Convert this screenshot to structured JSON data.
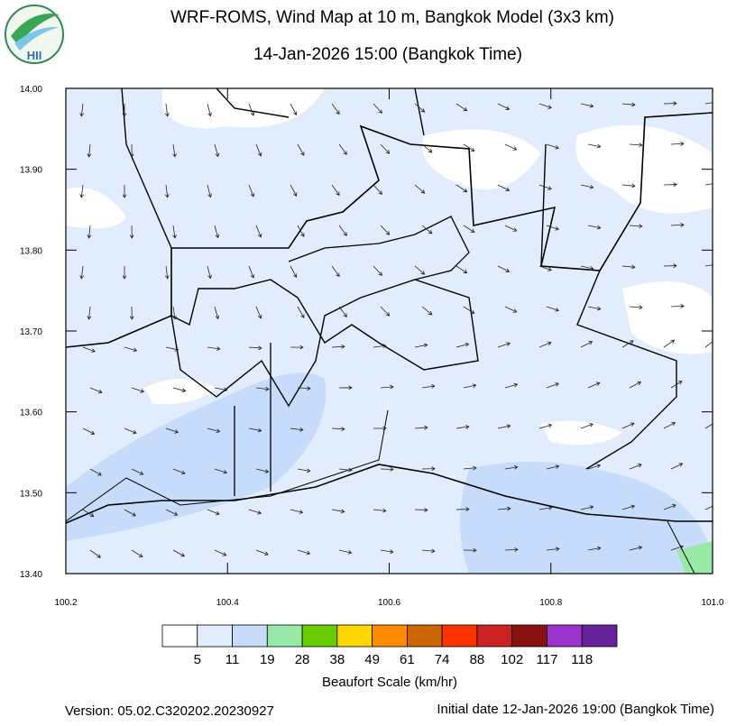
{
  "title": "WRF-ROMS, Wind Map at 10 m, Bangkok Model (3x3 km)",
  "subtitle": "14-Jan-2026 15:00 (Bangkok Time)",
  "logo_text": "HII",
  "map": {
    "xlim": [
      100.2,
      101.0
    ],
    "ylim": [
      13.4,
      14.0
    ],
    "xticks": [
      100.2,
      100.4,
      100.6,
      100.8,
      {
        "value": 101.0,
        "label": "101.0"
      }
    ],
    "yticks": [
      {
        "value": 14.0,
        "label": "14.00"
      },
      {
        "value": 13.9,
        "label": "13.90"
      },
      {
        "value": 13.8,
        "label": "13.80"
      },
      {
        "value": 13.7,
        "label": "13.70"
      },
      {
        "value": 13.6,
        "label": "13.60"
      },
      {
        "value": 13.5,
        "label": "13.50"
      },
      {
        "value": 13.4,
        "label": "13.40"
      }
    ]
  },
  "colorbar": {
    "label": "Beaufort Scale (km/hr)",
    "ticks": [
      5,
      11,
      19,
      28,
      38,
      49,
      61,
      74,
      88,
      102,
      117,
      118
    ],
    "colors": [
      "#ffffff",
      "#e1edfd",
      "#c6dcfa",
      "#98e8a8",
      "#66cc00",
      "#ffd700",
      "#ff8c00",
      "#cc6600",
      "#ff3300",
      "#cc2222",
      "#881111",
      "#9933cc",
      "#662299"
    ]
  },
  "footer": {
    "version": "Version: 05.02.C320202.20230927",
    "initial_date": "Initial date 12-Jan-2026 19:00 (Bangkok Time)"
  }
}
